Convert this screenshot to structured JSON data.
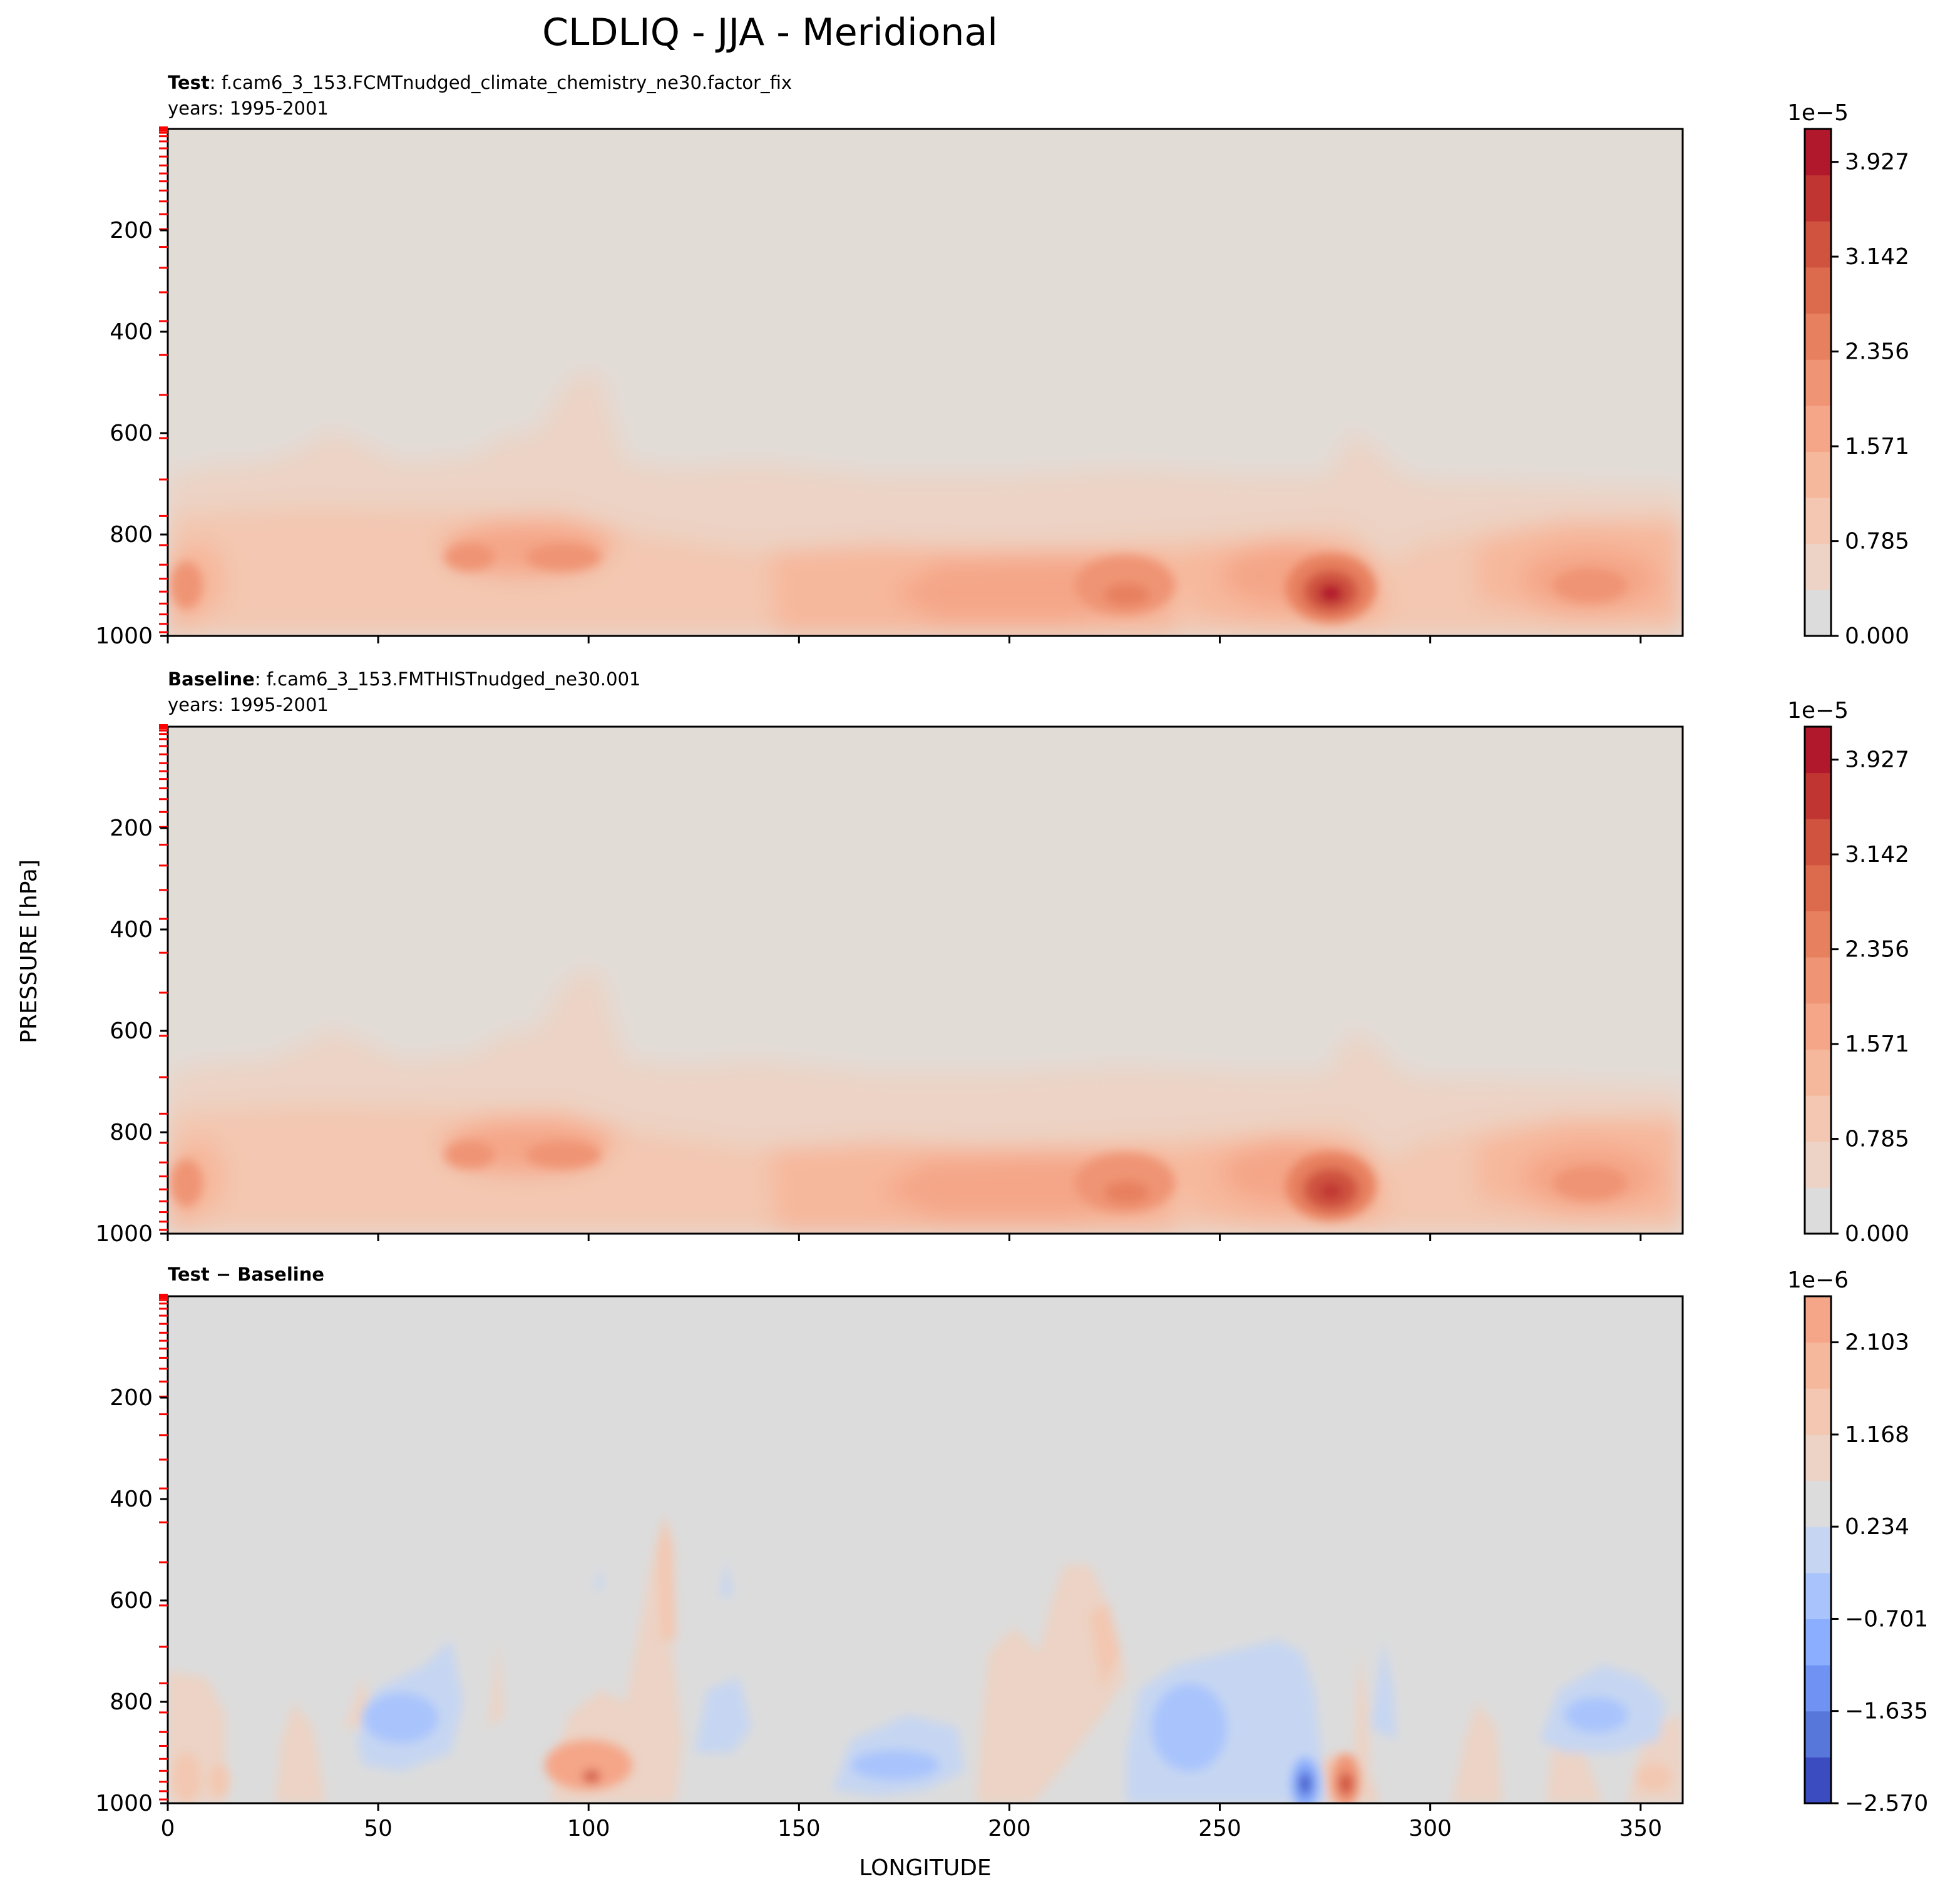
{
  "figure": {
    "title": "CLDLIQ - JJA - Meridional",
    "ylabel": "PRESSURE [hPa]",
    "xlabel": "LONGITUDE"
  },
  "colors": {
    "background_field": "#e2dcd7",
    "diff_background": "#dcdcdc",
    "positive_ramp": [
      "#dddcdc",
      "#ecd3c5",
      "#f3c7b1",
      "#f6b89c",
      "#f5a688",
      "#ef9474",
      "#e7805f",
      "#dc6b4e",
      "#cf533f",
      "#c03531",
      "#b2182b"
    ],
    "negative_ramp": [
      "#c6d6f2",
      "#a9c4fd",
      "#8caefe",
      "#7093f3",
      "#5877da",
      "#3b4cc0"
    ],
    "level_tick_marks": "#ff0000"
  },
  "chart_data": [
    {
      "type": "heatmap",
      "panel": "test",
      "label_bold": "Test",
      "label_rest": ": f.cam6_3_153.FCMTnudged_climate_chemistry_ne30.factor_fix",
      "years": "years: 1995-2001",
      "xlim": [
        0,
        360
      ],
      "ylim": [
        1000,
        0
      ],
      "yticks": [
        200,
        400,
        600,
        800,
        1000
      ],
      "xticks": [
        0,
        50,
        100,
        150,
        200,
        250,
        300,
        350
      ],
      "colorbar": {
        "exponent": "1e−5",
        "ticks": [
          "0.000",
          "0.785",
          "1.571",
          "2.356",
          "3.142",
          "3.927"
        ],
        "tick_values": [
          0.0,
          0.785,
          1.571,
          2.356,
          3.142,
          3.927
        ],
        "range": [
          0.0,
          4.2
        ],
        "levels": 12
      },
      "features": [
        {
          "lon": 274,
          "p": 925,
          "value": 4.1
        },
        {
          "lon": 226,
          "p": 925,
          "value": 3.0
        },
        {
          "lon": 338,
          "p": 925,
          "value": 2.8
        },
        {
          "lon": 90,
          "p": 850,
          "value": 2.6
        },
        {
          "lon": 5,
          "p": 925,
          "value": 2.7
        }
      ]
    },
    {
      "type": "heatmap",
      "panel": "baseline",
      "label_bold": "Baseline",
      "label_rest": ": f.cam6_3_153.FMTHISTnudged_ne30.001",
      "years": "years: 1995-2001",
      "xlim": [
        0,
        360
      ],
      "ylim": [
        1000,
        0
      ],
      "yticks": [
        200,
        400,
        600,
        800,
        1000
      ],
      "xticks": [
        0,
        50,
        100,
        150,
        200,
        250,
        300,
        350
      ],
      "colorbar": {
        "exponent": "1e−5",
        "ticks": [
          "0.000",
          "0.785",
          "1.571",
          "2.356",
          "3.142",
          "3.927"
        ],
        "tick_values": [
          0.0,
          0.785,
          1.571,
          2.356,
          3.142,
          3.927
        ],
        "range": [
          0.0,
          4.2
        ],
        "levels": 12
      },
      "features": [
        {
          "lon": 274,
          "p": 925,
          "value": 4.0
        },
        {
          "lon": 226,
          "p": 925,
          "value": 3.0
        },
        {
          "lon": 338,
          "p": 925,
          "value": 2.8
        },
        {
          "lon": 90,
          "p": 850,
          "value": 2.6
        },
        {
          "lon": 5,
          "p": 925,
          "value": 2.7
        }
      ]
    },
    {
      "type": "heatmap",
      "panel": "difference",
      "label": "Test − Baseline",
      "xlim": [
        0,
        360
      ],
      "ylim": [
        1000,
        0
      ],
      "yticks": [
        200,
        400,
        600,
        800,
        1000
      ],
      "xticks": [
        0,
        50,
        100,
        150,
        200,
        250,
        300,
        350
      ],
      "colorbar": {
        "exponent": "1e−6",
        "ticks": [
          "−2.570",
          "−1.635",
          "−0.701",
          "0.234",
          "1.168",
          "2.103"
        ],
        "tick_values": [
          -2.57,
          -1.635,
          -0.701,
          0.234,
          1.168,
          2.103
        ],
        "range": [
          -2.57,
          2.57
        ],
        "levels": 11
      },
      "features": [
        {
          "lon": 270,
          "p": 925,
          "value": -2.5
        },
        {
          "lon": 279,
          "p": 930,
          "value": 2.3
        },
        {
          "lon": 175,
          "p": 920,
          "value": -1.6
        },
        {
          "lon": 60,
          "p": 840,
          "value": -1.4
        },
        {
          "lon": 100,
          "p": 920,
          "value": 1.5
        },
        {
          "lon": 340,
          "p": 855,
          "value": -1.5
        }
      ]
    }
  ]
}
